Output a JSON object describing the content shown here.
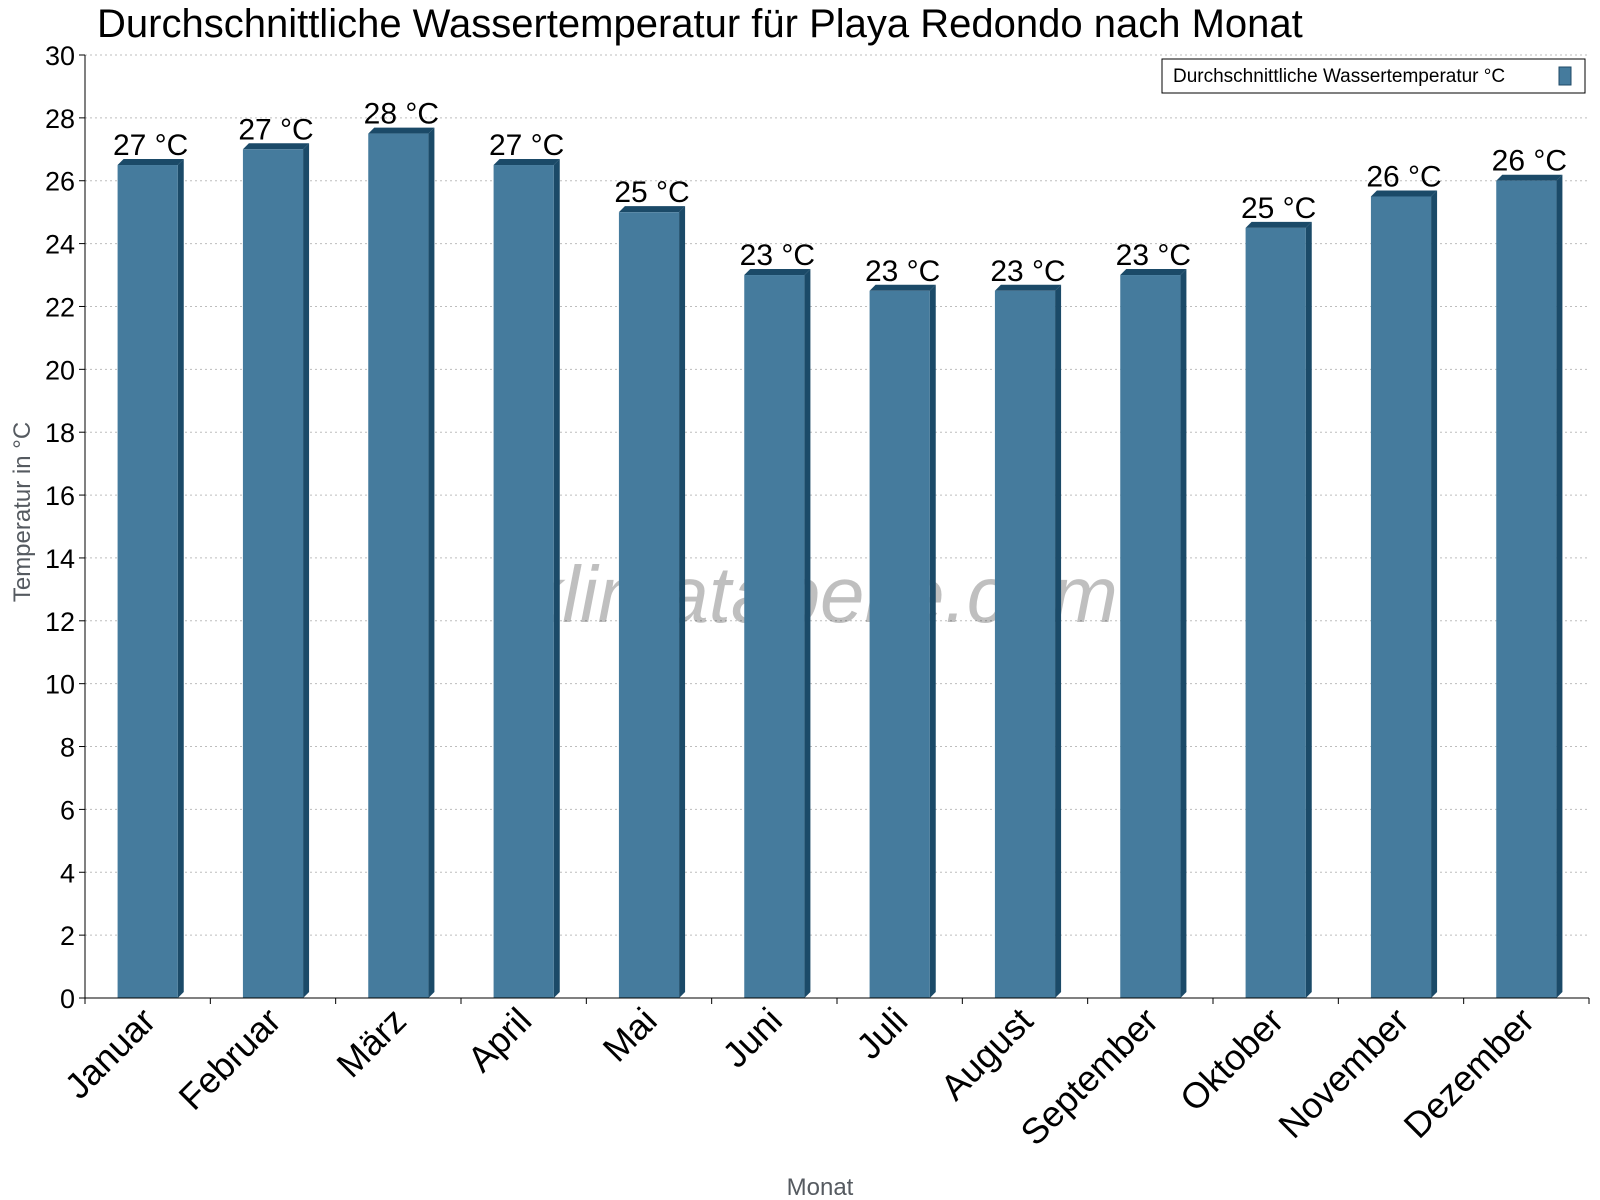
{
  "chart_data": {
    "type": "bar",
    "title": "Durchschnittliche Wassertemperatur für Playa Redondo nach Monat",
    "xlabel": "Monat",
    "ylabel": "Temperatur in °C",
    "ylim": [
      0,
      30
    ],
    "yticks": [
      0,
      2,
      4,
      6,
      8,
      10,
      12,
      14,
      16,
      18,
      20,
      22,
      24,
      26,
      28,
      30
    ],
    "grid": true,
    "legend_position": "top-right",
    "categories": [
      "Januar",
      "Februar",
      "März",
      "April",
      "Mai",
      "Juni",
      "Juli",
      "August",
      "September",
      "Oktober",
      "November",
      "Dezember"
    ],
    "series": [
      {
        "name": "Durchschnittliche Wassertemperatur °C",
        "color": "#457b9d",
        "values": [
          26.5,
          27.0,
          27.5,
          26.5,
          25.0,
          23.0,
          22.5,
          22.5,
          23.0,
          24.5,
          25.5,
          26.0
        ],
        "data_labels": [
          "27 °C",
          "27 °C",
          "28 °C",
          "27 °C",
          "25 °C",
          "23 °C",
          "23 °C",
          "23 °C",
          "23 °C",
          "25 °C",
          "26 °C",
          "26 °C"
        ]
      }
    ],
    "watermark": "klimatabelle.com"
  }
}
